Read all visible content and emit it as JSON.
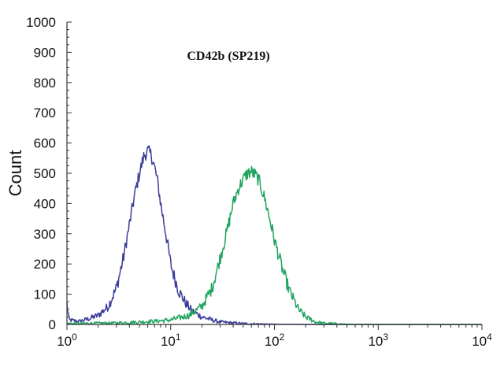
{
  "chart_data": {
    "type": "line",
    "title": "CD42b (SP219)",
    "xlabel": "",
    "ylabel": "Count",
    "x_scale": "log",
    "xlim": [
      1,
      10000
    ],
    "ylim": [
      0,
      1000
    ],
    "x_ticks": [
      {
        "value": 1,
        "base": "10",
        "exp": "0"
      },
      {
        "value": 10,
        "base": "10",
        "exp": "1"
      },
      {
        "value": 100,
        "base": "10",
        "exp": "2"
      },
      {
        "value": 1000,
        "base": "10",
        "exp": "3"
      },
      {
        "value": 10000,
        "base": "10",
        "exp": "4"
      }
    ],
    "y_ticks": [
      0,
      100,
      200,
      300,
      400,
      500,
      600,
      700,
      800,
      900,
      1000
    ],
    "grid": false,
    "legend": "none",
    "series": [
      {
        "color": "#3a3d9a",
        "x": [
          1,
          1.05,
          1.3,
          1.6,
          2,
          2.5,
          3,
          3.5,
          4,
          4.5,
          5,
          5.5,
          6,
          6.5,
          7,
          7.5,
          8,
          9,
          10,
          11,
          12,
          14,
          16,
          20,
          25,
          30,
          40,
          50,
          70,
          100,
          200,
          1000,
          10000
        ],
        "y": [
          65,
          15,
          10,
          18,
          30,
          60,
          120,
          220,
          330,
          430,
          500,
          555,
          575,
          560,
          520,
          470,
          400,
          300,
          200,
          150,
          110,
          70,
          45,
          25,
          15,
          8,
          5,
          3,
          2,
          1,
          0,
          0,
          0
        ]
      },
      {
        "color": "#1fa55f",
        "x": [
          1,
          3,
          5,
          8,
          10,
          15,
          20,
          25,
          30,
          35,
          40,
          45,
          50,
          55,
          60,
          65,
          70,
          80,
          90,
          100,
          120,
          140,
          170,
          200,
          250,
          300,
          500,
          1000,
          10000
        ],
        "y": [
          3,
          5,
          8,
          12,
          15,
          30,
          60,
          120,
          220,
          310,
          400,
          450,
          480,
          500,
          505,
          495,
          480,
          420,
          350,
          280,
          180,
          110,
          50,
          25,
          8,
          4,
          1,
          0,
          0
        ]
      }
    ]
  }
}
